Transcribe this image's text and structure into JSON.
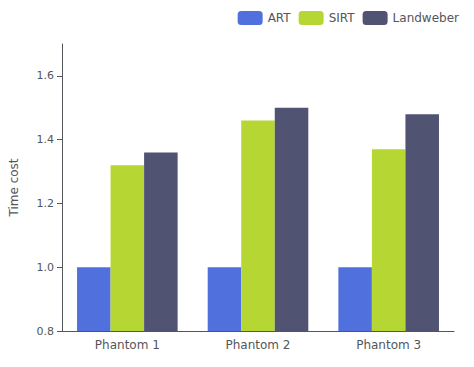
{
  "chart_data": {
    "type": "bar",
    "categories": [
      "Phantom 1",
      "Phantom 2",
      "Phantom 3"
    ],
    "series": [
      {
        "name": "ART",
        "values": [
          1.0,
          1.0,
          1.0
        ]
      },
      {
        "name": "SIRT",
        "values": [
          1.32,
          1.46,
          1.37
        ]
      },
      {
        "name": "Landweber",
        "values": [
          1.36,
          1.5,
          1.48
        ]
      }
    ],
    "ylabel": "Time cost",
    "ylim": [
      0.8,
      1.7
    ],
    "yticks": [
      0.8,
      {
        "value": 1.0,
        "label": "1.0"
      },
      1.2,
      1.4,
      1.6
    ],
    "grid": false,
    "legend": "upper right"
  }
}
